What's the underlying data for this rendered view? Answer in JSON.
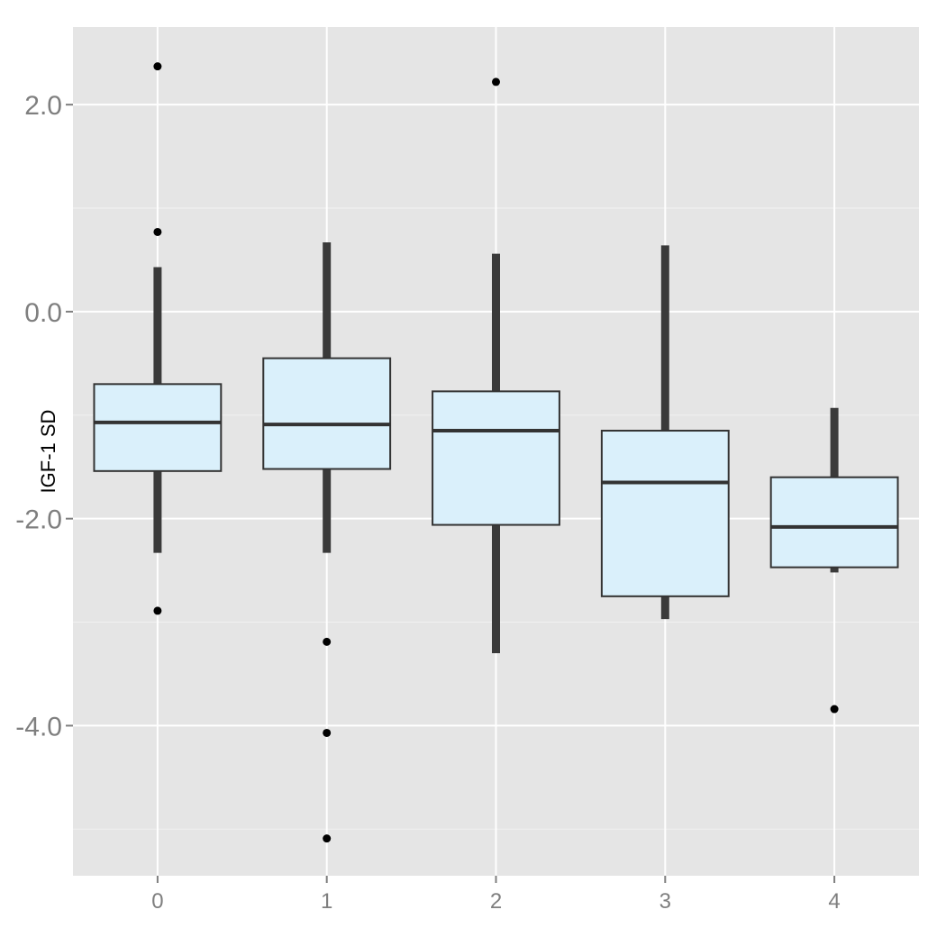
{
  "chart_data": {
    "type": "box",
    "title": "",
    "xlabel": "",
    "ylabel": "IGF-1 SD",
    "categories": [
      "0",
      "1",
      "2",
      "3",
      "4"
    ],
    "ylim": [
      -5.45,
      2.75
    ],
    "y_ticks": [
      2.0,
      0.0,
      -2.0,
      -4.0
    ],
    "y_tick_labels": [
      "2.0",
      "0.0",
      "-2.0",
      "-4.0"
    ],
    "grid": true,
    "boxes": [
      {
        "category": "0",
        "whisker_low": -2.33,
        "q1": -1.54,
        "median": -1.07,
        "q3": -0.7,
        "whisker_high": 0.43,
        "outliers": [
          2.37,
          0.77,
          -2.89
        ]
      },
      {
        "category": "1",
        "whisker_low": -2.33,
        "q1": -1.52,
        "median": -1.09,
        "q3": -0.45,
        "whisker_high": 0.67,
        "outliers": [
          -3.19,
          -4.07,
          -5.09
        ]
      },
      {
        "category": "2",
        "whisker_low": -3.3,
        "q1": -2.06,
        "median": -1.15,
        "q3": -0.77,
        "whisker_high": 0.56,
        "outliers": [
          2.22
        ]
      },
      {
        "category": "3",
        "whisker_low": -2.97,
        "q1": -2.75,
        "median": -1.65,
        "q3": -1.15,
        "whisker_high": 0.64,
        "outliers": []
      },
      {
        "category": "4",
        "whisker_low": -2.52,
        "q1": -2.47,
        "median": -2.08,
        "q3": -1.6,
        "whisker_high": -0.93,
        "outliers": [
          -3.84
        ]
      }
    ],
    "colors": {
      "panel_bg": "#e5e5e5",
      "grid_major": "#ffffff",
      "grid_minor": "#f2f2f2",
      "box_fill": "#daf0fb",
      "box_stroke": "#333333",
      "median": "#333333",
      "whisker": "#3a3a3a",
      "outlier": "#000000",
      "tick_label": "#7f7f7f",
      "axis_title": "#000000"
    }
  }
}
